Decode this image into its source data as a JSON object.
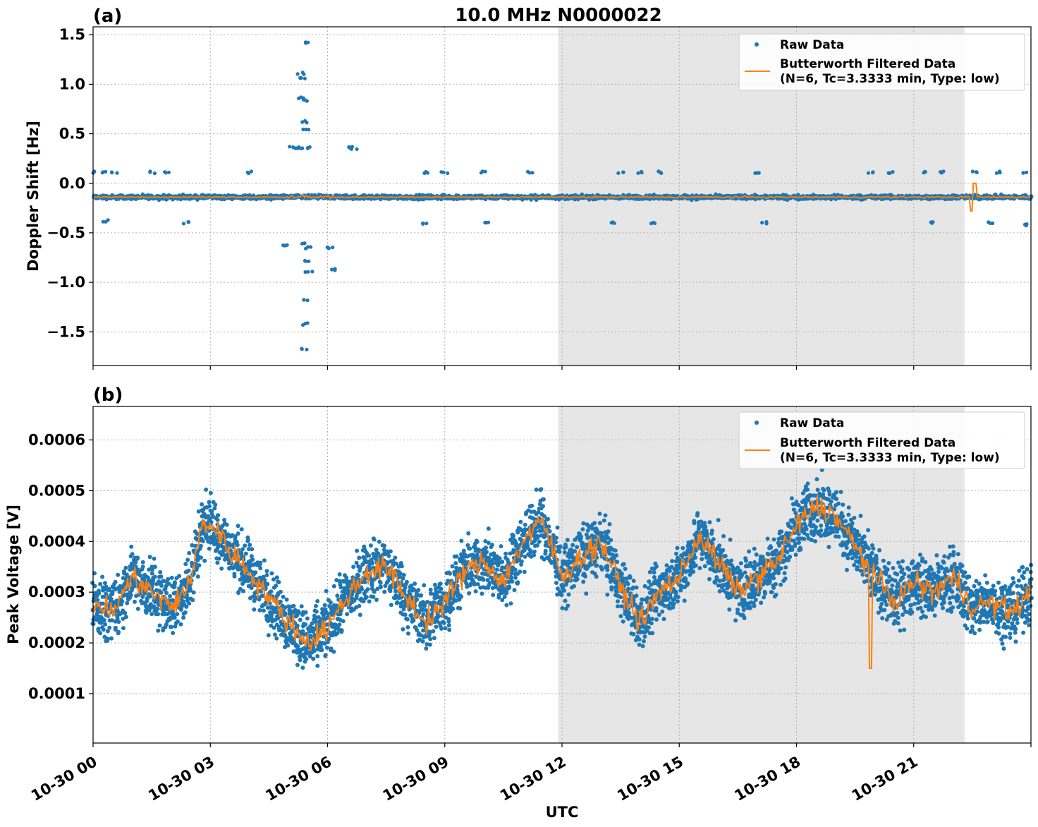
{
  "figure": {
    "title": "10.0 MHz N0000022",
    "xlabel": "UTC"
  },
  "colors": {
    "raw": "#1f77b4",
    "filtered": "#ff7f0e",
    "night_shade": "#e6e6e6",
    "grid": "#b0b0b0"
  },
  "legend": {
    "raw_label": "Raw Data",
    "filtered_label_line1": "Butterworth Filtered Data",
    "filtered_label_line2": "(N=6, Tc=3.3333 min, Type: low)",
    "placement": "upper-right"
  },
  "chart_data": [
    {
      "panel_label": "(a)",
      "type": "scatter",
      "title": "10.0 MHz N0000022",
      "xlabel": "UTC",
      "ylabel": "Doppler Shift [Hz]",
      "x_unit": "hours since 10-30 00:00 UTC",
      "xlim": [
        0,
        24
      ],
      "ylim": [
        -1.84,
        1.58
      ],
      "x_tick_labels": [
        "10-30 00",
        "10-30 03",
        "10-30 06",
        "10-30 09",
        "10-30 12",
        "10-30 15",
        "10-30 18",
        "10-30 21"
      ],
      "x_tick_values": [
        0,
        3,
        6,
        9,
        12,
        15,
        18,
        21
      ],
      "y_ticks": [
        1.5,
        1.0,
        0.5,
        0.0,
        -0.5,
        -1.0,
        -1.5
      ],
      "y_tick_labels": [
        "1.5",
        "1.0",
        "0.5",
        "0.0",
        "−0.5",
        "−1.0",
        "−1.5"
      ],
      "grid": true,
      "shaded_span": [
        11.9,
        22.3
      ],
      "series": [
        {
          "name": "Raw Data",
          "kind": "points",
          "baseline": -0.14,
          "spread": 0.025
        },
        {
          "name": "Butterworth Filtered Data (N=6, Tc=3.3333 min, Type: low)",
          "kind": "line",
          "baseline": -0.14
        }
      ],
      "outliers": [
        [
          5.42,
          1.42
        ],
        [
          5.32,
          1.11
        ],
        [
          5.38,
          1.06
        ],
        [
          5.35,
          0.86
        ],
        [
          5.47,
          0.84
        ],
        [
          5.4,
          0.62
        ],
        [
          5.44,
          0.55
        ],
        [
          5.3,
          0.36
        ],
        [
          5.2,
          0.36
        ],
        [
          5.5,
          0.36
        ],
        [
          5.1,
          0.36
        ],
        [
          6.6,
          0.36
        ],
        [
          6.7,
          0.35
        ],
        [
          5.4,
          -0.6
        ],
        [
          5.5,
          -0.65
        ],
        [
          5.45,
          -0.78
        ],
        [
          5.52,
          -0.9
        ],
        [
          5.42,
          -1.18
        ],
        [
          5.42,
          -1.42
        ],
        [
          5.42,
          -1.68
        ],
        [
          6.05,
          -0.65
        ],
        [
          6.15,
          -0.87
        ],
        [
          4.95,
          -0.62
        ],
        [
          0.05,
          0.11
        ],
        [
          0.3,
          0.11
        ],
        [
          0.55,
          0.11
        ],
        [
          1.5,
          0.11
        ],
        [
          1.9,
          0.11
        ],
        [
          4.0,
          0.11
        ],
        [
          8.5,
          0.11
        ],
        [
          9.0,
          0.11
        ],
        [
          10.0,
          0.11
        ],
        [
          11.2,
          0.11
        ],
        [
          13.5,
          0.11
        ],
        [
          14.0,
          0.11
        ],
        [
          14.5,
          0.11
        ],
        [
          17.0,
          0.11
        ],
        [
          19.9,
          0.11
        ],
        [
          20.4,
          0.11
        ],
        [
          21.3,
          0.11
        ],
        [
          21.7,
          0.11
        ],
        [
          22.6,
          0.11
        ],
        [
          23.2,
          0.11
        ],
        [
          23.8,
          0.11
        ],
        [
          0.3,
          -0.38
        ],
        [
          2.4,
          -0.4
        ],
        [
          8.5,
          -0.4
        ],
        [
          10.1,
          -0.4
        ],
        [
          13.3,
          -0.4
        ],
        [
          14.3,
          -0.4
        ],
        [
          17.2,
          -0.4
        ],
        [
          21.5,
          -0.4
        ],
        [
          23.0,
          -0.4
        ],
        [
          23.9,
          -0.42
        ]
      ]
    },
    {
      "panel_label": "(b)",
      "type": "scatter",
      "xlabel": "UTC",
      "ylabel": "Peak Voltage [V]",
      "x_unit": "hours since 10-30 00:00 UTC",
      "xlim": [
        0,
        24
      ],
      "ylim": [
        2.6e-06,
        0.000666
      ],
      "x_tick_labels": [
        "10-30 00",
        "10-30 03",
        "10-30 06",
        "10-30 09",
        "10-30 12",
        "10-30 15",
        "10-30 18",
        "10-30 21"
      ],
      "x_tick_values": [
        0,
        3,
        6,
        9,
        12,
        15,
        18,
        21
      ],
      "y_ticks": [
        0.0006,
        0.0005,
        0.0004,
        0.0003,
        0.0002,
        0.0001
      ],
      "y_tick_labels": [
        "0.0006",
        "0.0005",
        "0.0004",
        "0.0003",
        "0.0002",
        "0.0001"
      ],
      "grid": true,
      "shaded_span": [
        11.9,
        22.3
      ],
      "series": [
        {
          "name": "Raw Data",
          "kind": "points"
        },
        {
          "name": "Butterworth Filtered Data (N=6, Tc=3.3333 min, Type: low)",
          "kind": "line"
        }
      ],
      "filtered_trend": [
        [
          0.0,
          0.00028
        ],
        [
          0.5,
          0.00026
        ],
        [
          1.0,
          0.00033
        ],
        [
          1.5,
          0.0003
        ],
        [
          2.0,
          0.00027
        ],
        [
          2.5,
          0.00032
        ],
        [
          2.8,
          0.00044
        ],
        [
          3.2,
          0.00042
        ],
        [
          3.5,
          0.00038
        ],
        [
          4.0,
          0.00034
        ],
        [
          4.5,
          0.00029
        ],
        [
          5.0,
          0.00024
        ],
        [
          5.5,
          0.0002
        ],
        [
          6.0,
          0.00023
        ],
        [
          6.5,
          0.00029
        ],
        [
          7.0,
          0.00034
        ],
        [
          7.5,
          0.00035
        ],
        [
          8.0,
          0.00029
        ],
        [
          8.5,
          0.00024
        ],
        [
          9.0,
          0.00028
        ],
        [
          9.5,
          0.00034
        ],
        [
          10.0,
          0.00036
        ],
        [
          10.5,
          0.00032
        ],
        [
          11.0,
          0.0004
        ],
        [
          11.5,
          0.00044
        ],
        [
          12.0,
          0.00033
        ],
        [
          12.5,
          0.00037
        ],
        [
          13.0,
          0.0004
        ],
        [
          13.5,
          0.00031
        ],
        [
          14.0,
          0.00024
        ],
        [
          14.5,
          0.0003
        ],
        [
          15.0,
          0.00033
        ],
        [
          15.5,
          0.00041
        ],
        [
          16.0,
          0.00036
        ],
        [
          16.5,
          0.0003
        ],
        [
          17.0,
          0.00033
        ],
        [
          17.5,
          0.00036
        ],
        [
          18.0,
          0.00043
        ],
        [
          18.5,
          0.00047
        ],
        [
          19.0,
          0.00045
        ],
        [
          19.5,
          0.00039
        ],
        [
          20.0,
          0.00033
        ],
        [
          20.5,
          0.00028
        ],
        [
          21.0,
          0.00032
        ],
        [
          21.5,
          0.0003
        ],
        [
          22.0,
          0.00033
        ],
        [
          22.5,
          0.00027
        ],
        [
          23.0,
          0.00028
        ],
        [
          23.5,
          0.00026
        ],
        [
          24.0,
          0.0003
        ]
      ]
    }
  ]
}
